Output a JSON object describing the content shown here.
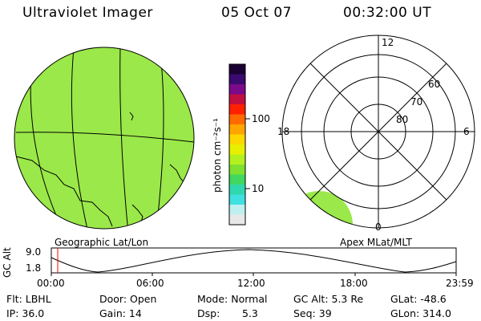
{
  "header": {
    "instrument": "Ultraviolet Imager",
    "date": "05 Oct 07",
    "time": "00:32:00 UT"
  },
  "colorbar": {
    "unit_label": "photon cm⁻²s⁻¹",
    "ticks": [
      "100",
      "10"
    ],
    "colors_top_to_bottom": [
      "#1a0033",
      "#3b0a6e",
      "#7a0a8a",
      "#c01040",
      "#ff2000",
      "#ff6a00",
      "#ffa500",
      "#ffd700",
      "#e6f000",
      "#b4f020",
      "#7ee030",
      "#40d860",
      "#30d8b0",
      "#40e0e0",
      "#bff0f0",
      "#e8e8e8"
    ]
  },
  "geo_map": {
    "projection_label": "Geographic Lat/Lon",
    "fill_color": "#9be84a"
  },
  "polar_plot": {
    "projection_label": "Apex MLat/MLT",
    "mlt_labels": {
      "top": "12",
      "left": "18",
      "right": "6",
      "bottom": "0"
    },
    "lat_labels": [
      "60",
      "70",
      "80"
    ]
  },
  "altitude_plot": {
    "axis_label": "GC Alt",
    "y_ticks": [
      "9.0",
      "1.8"
    ],
    "x_ticks": [
      "00:00",
      "06:00",
      "12:00",
      "18:00",
      "23:59"
    ],
    "current_marker_color": "#ff0000"
  },
  "status": {
    "filter": "Flt: LBHL",
    "ip": "IP: 36.0",
    "door": "Door: Open",
    "gain": "Gain: 14",
    "mode": "Mode: Normal",
    "dsp_label": "Dsp:",
    "dsp_value": "5.3",
    "gc_alt": "GC Alt: 5.3 Re",
    "seq": "Seq: 39",
    "glat": "GLat: -48.6",
    "glon": "GLon: 314.0"
  }
}
